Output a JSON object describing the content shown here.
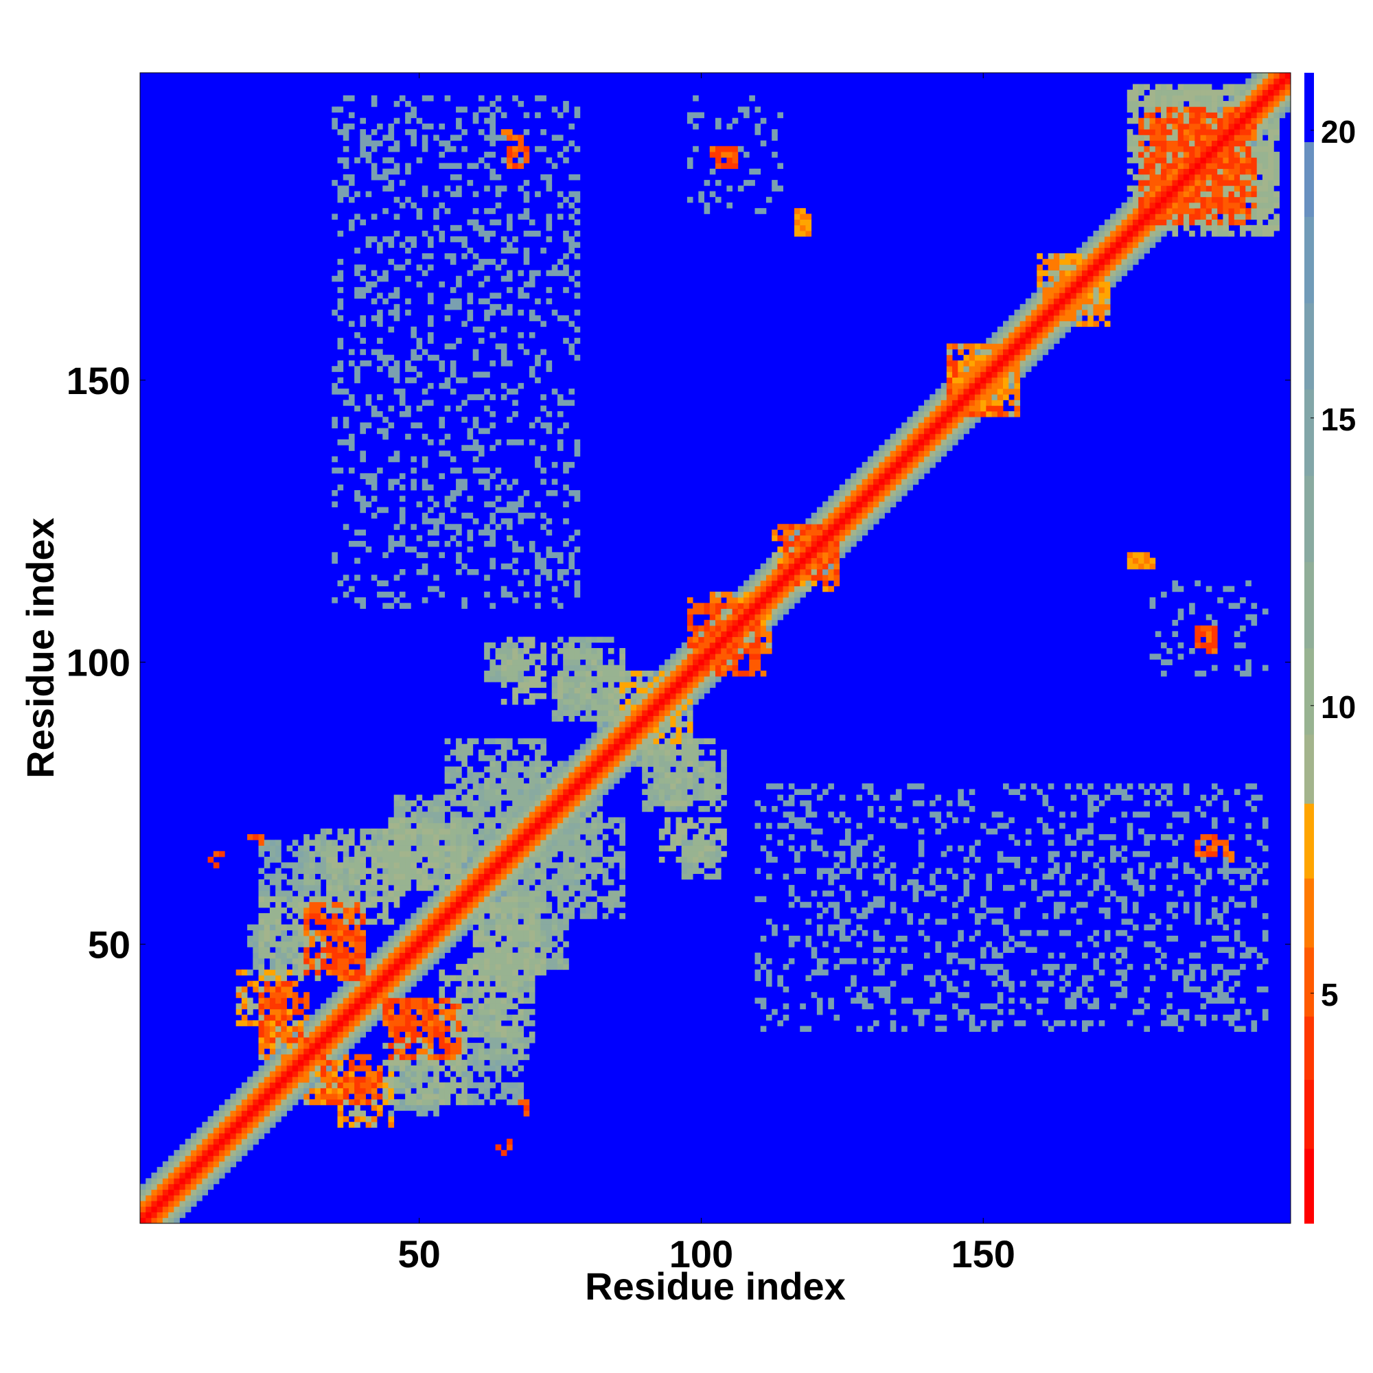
{
  "chart_data": {
    "type": "heatmap",
    "title": "",
    "xlabel": "Residue index",
    "ylabel": "Residue index",
    "xlim": [
      1,
      204
    ],
    "ylim": [
      1,
      204
    ],
    "x_ticks": [
      50,
      100,
      150
    ],
    "y_ticks": [
      50,
      100,
      150
    ],
    "x_tick_labels": [
      "50",
      "100",
      "150"
    ],
    "y_tick_labels": [
      "50",
      "100",
      "150"
    ],
    "grid": false,
    "legend": "none",
    "symmetric": true,
    "colorbar": {
      "position": "right",
      "range": [
        1,
        21
      ],
      "ticks": [
        5,
        10,
        15,
        20
      ],
      "tick_labels": [
        "5",
        "10",
        "15",
        "20"
      ],
      "levels": [
        {
          "max": 2.3,
          "color": "#ff0000"
        },
        {
          "max": 3.5,
          "color": "#ff1c00"
        },
        {
          "max": 4.6,
          "color": "#ff3800"
        },
        {
          "max": 5.8,
          "color": "#ff5a00"
        },
        {
          "max": 7.0,
          "color": "#ff7a00"
        },
        {
          "max": 8.3,
          "color": "#ffa500"
        },
        {
          "max": 9.5,
          "color": "#a3b48c"
        },
        {
          "max": 11.0,
          "color": "#98b391"
        },
        {
          "max": 12.5,
          "color": "#90ae98"
        },
        {
          "max": 14.0,
          "color": "#89aaa0"
        },
        {
          "max": 15.5,
          "color": "#82a6a8"
        },
        {
          "max": 17.0,
          "color": "#7aa0b0"
        },
        {
          "max": 18.5,
          "color": "#719bb8"
        },
        {
          "max": 19.8,
          "color": "#6890c0"
        },
        {
          "max": 21.0,
          "color": "#0000ff"
        }
      ]
    },
    "background_value": 21,
    "diagonal_profile": [
      {
        "offset": 0,
        "value": 1
      },
      {
        "offset": 1,
        "value": 3
      },
      {
        "offset": 2,
        "value": 5.5
      },
      {
        "offset": 3,
        "value": 6.5
      },
      {
        "offset": 4,
        "value": 9
      },
      {
        "offset": 5,
        "value": 12
      },
      {
        "offset": 6,
        "value": 16
      }
    ],
    "contact_regions": [
      {
        "x": [
          18,
          27
        ],
        "y": [
          36,
          45
        ],
        "value": 7.5
      },
      {
        "x": [
          33,
          43
        ],
        "y": [
          22,
          30
        ],
        "value": 7.5
      },
      {
        "x": [
          44,
          52
        ],
        "y": [
          34,
          40
        ],
        "value": 7.5
      },
      {
        "x": [
          30,
          40
        ],
        "y": [
          45,
          57
        ],
        "value": 7.5
      },
      {
        "x": [
          22,
          29
        ],
        "y": [
          30,
          36
        ],
        "value": 7.5
      },
      {
        "x": [
          44,
          58
        ],
        "y": [
          22,
          33
        ],
        "value": 12
      },
      {
        "x": [
          34,
          48
        ],
        "y": [
          57,
          68
        ],
        "value": 12
      },
      {
        "x": [
          44,
          60
        ],
        "y": [
          60,
          72
        ],
        "value": 12
      },
      {
        "x": [
          54,
          70
        ],
        "y": [
          30,
          46
        ],
        "value": 12
      },
      {
        "x": [
          60,
          76
        ],
        "y": [
          46,
          62
        ],
        "value": 12
      },
      {
        "x": [
          22,
          36
        ],
        "y": [
          58,
          68
        ],
        "value": 14
      },
      {
        "x": [
          20,
          30
        ],
        "y": [
          45,
          53
        ],
        "value": 14
      },
      {
        "x": [
          62,
          78
        ],
        "y": [
          66,
          82
        ],
        "value": 12
      },
      {
        "x": [
          76,
          86
        ],
        "y": [
          55,
          72
        ],
        "value": 13
      },
      {
        "x": [
          62,
          68
        ],
        "y": [
          97,
          103
        ],
        "value": 12
      },
      {
        "x": [
          74,
          84
        ],
        "y": [
          90,
          104
        ],
        "value": 12
      },
      {
        "x": [
          82,
          96
        ],
        "y": [
          84,
          98
        ],
        "value": 11
      },
      {
        "x": [
          92,
          102
        ],
        "y": [
          75,
          86
        ],
        "value": 13
      },
      {
        "x": [
          93,
          104
        ],
        "y": [
          65,
          72
        ],
        "value": 12
      },
      {
        "x": [
          98,
          110
        ],
        "y": [
          101,
          112
        ],
        "value": 7.5
      },
      {
        "x": [
          113,
          124
        ],
        "y": [
          114,
          124
        ],
        "value": 7.5
      },
      {
        "x": [
          144,
          156
        ],
        "y": [
          144,
          156
        ],
        "value": 7.5
      },
      {
        "x": [
          160,
          172
        ],
        "y": [
          162,
          172
        ],
        "value": 7.5
      },
      {
        "x": [
          176,
          201
        ],
        "y": [
          178,
          202
        ],
        "value": 12
      },
      {
        "x": [
          178,
          196
        ],
        "y": [
          180,
          198
        ],
        "value": 7.5
      },
      {
        "x": [
          37,
          39
        ],
        "y": [
          24,
          26
        ],
        "value": 7.5
      },
      {
        "x": [
          20,
          22
        ],
        "y": [
          68,
          70
        ],
        "value": 7.5
      },
      {
        "x": [
          64,
          66
        ],
        "y": [
          13,
          15
        ],
        "value": 7.5
      },
      {
        "x": [
          65,
          67
        ],
        "y": [
          193,
          195
        ],
        "value": 7.5
      },
      {
        "x": [
          102,
          106
        ],
        "y": [
          188,
          191
        ],
        "value": 7.5
      },
      {
        "x": [
          117,
          119
        ],
        "y": [
          178,
          180
        ],
        "value": 7.5
      },
      {
        "x": [
          176,
          178
        ],
        "y": [
          117,
          119
        ],
        "value": 7.5
      },
      {
        "x": [
          188,
          191
        ],
        "y": [
          103,
          106
        ],
        "value": 7.5
      },
      {
        "x": [
          188,
          194
        ],
        "y": [
          66,
          69
        ],
        "value": 7.5
      },
      {
        "x": [
          98,
          114
        ],
        "y": [
          180,
          200
        ],
        "value": 17
      },
      {
        "x": [
          35,
          78
        ],
        "y": [
          110,
          200
        ],
        "value": 17
      },
      {
        "x": [
          110,
          200
        ],
        "y": [
          35,
          78
        ],
        "value": 17
      }
    ]
  }
}
